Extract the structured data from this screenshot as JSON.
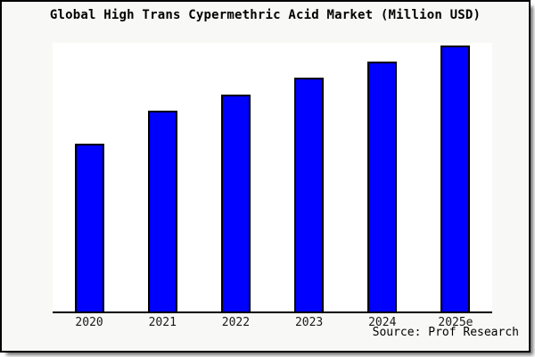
{
  "chart_data": {
    "type": "bar",
    "title": "Global High Trans Cypermethric Acid Market (Million USD)",
    "categories": [
      "2020",
      "2021",
      "2022",
      "2023",
      "2024",
      "2025e"
    ],
    "values": [
      62.4,
      74.6,
      80.9,
      87.1,
      93.1,
      99.0
    ],
    "xlabel": "",
    "ylabel": "",
    "ylim": [
      0,
      100
    ],
    "y_axis_visible": false,
    "grid": false,
    "legend": "none",
    "bar_color": "#0000ff",
    "bar_border_color": "#000000",
    "plot_background": "#ffffff",
    "outer_background": "#f8f8f6",
    "axis_line_color": "#000000"
  },
  "source": {
    "label": "Source: Prof Research"
  }
}
